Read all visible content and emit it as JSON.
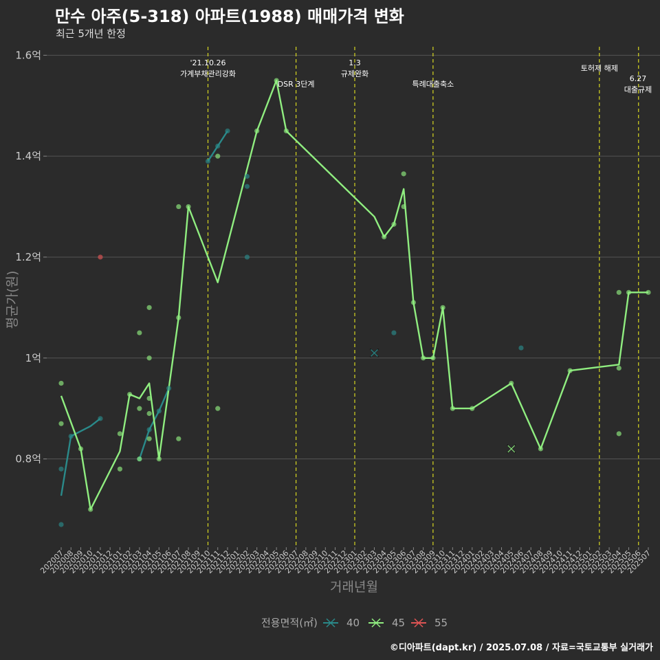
{
  "header": {
    "title": "만수 아주(5-318) 아파트(1988) 매매가격 변화",
    "subtitle": "최근 5개년 한정"
  },
  "caption": "©디아파트(dapt.kr) / 2025.07.08 / 자료=국토교통부 실거래가",
  "colors": {
    "40": "#2a8a8a",
    "45": "#90ee80",
    "55": "#e05555",
    "vline": "#d8d820",
    "grid": "#555555"
  },
  "chart_data": {
    "type": "line",
    "xlabel": "거래년월",
    "ylabel": "평균가(원)",
    "ylim": [
      0.625,
      1.625
    ],
    "yticks": [
      {
        "v": 0.8,
        "label": "0.8억"
      },
      {
        "v": 1.0,
        "label": "1억"
      },
      {
        "v": 1.2,
        "label": "1.2억"
      },
      {
        "v": 1.4,
        "label": "1.4억"
      },
      {
        "v": 1.6,
        "label": "1.6억"
      }
    ],
    "categories": [
      "202007",
      "202008",
      "202009",
      "202010",
      "202011",
      "202012",
      "202101",
      "202102",
      "202103",
      "202104",
      "202105",
      "202106",
      "202107",
      "202108",
      "202109",
      "202110",
      "202111",
      "202112",
      "202201",
      "202202",
      "202203",
      "202204",
      "202205",
      "202206",
      "202207",
      "202208",
      "202209",
      "202210",
      "202211",
      "202212",
      "202301",
      "202302",
      "202303",
      "202304",
      "202305",
      "202306",
      "202307",
      "202308",
      "202309",
      "202310",
      "202311",
      "202312",
      "202401",
      "202402",
      "202403",
      "202404",
      "202405",
      "202406",
      "202407",
      "202408",
      "202409",
      "202410",
      "202411",
      "202412",
      "202501",
      "202502",
      "202503",
      "202504",
      "202505",
      "202506",
      "202507"
    ],
    "legend": {
      "title": "전용면적(㎡)",
      "items": [
        "40",
        "45",
        "55"
      ]
    },
    "series": [
      {
        "name": "40",
        "line": [
          [
            "202007",
            0.727
          ],
          [
            "202008",
            0.845
          ],
          [
            "202010",
            0.865
          ],
          [
            "202011",
            0.88
          ],
          null,
          [
            "202103",
            0.8
          ],
          [
            "202104",
            0.858
          ],
          [
            "202105",
            0.895
          ],
          [
            "202106",
            0.94
          ],
          null,
          [
            "202110",
            1.39
          ],
          [
            "202111",
            1.42
          ],
          [
            "202112",
            1.45
          ]
        ],
        "points": [
          [
            "202007",
            0.78
          ],
          [
            "202007",
            0.67
          ],
          [
            "202008",
            0.845
          ],
          [
            "202011",
            0.88
          ],
          [
            "202103",
            0.8
          ],
          [
            "202104",
            0.858
          ],
          [
            "202105",
            0.895
          ],
          [
            "202106",
            0.94
          ],
          [
            "202110",
            1.39
          ],
          [
            "202111",
            1.42
          ],
          [
            "202112",
            1.45
          ],
          [
            "202202",
            1.36
          ],
          [
            "202202",
            1.34
          ],
          [
            "202202",
            1.2
          ],
          [
            "202305",
            1.05
          ],
          [
            "202406",
            1.02
          ]
        ],
        "cross": [
          [
            "202303",
            1.01
          ]
        ]
      },
      {
        "name": "45",
        "line": [
          [
            "202007",
            0.925
          ],
          [
            "202009",
            0.82
          ],
          [
            "202010",
            0.7
          ],
          [
            "202101",
            0.815
          ],
          [
            "202102",
            0.928
          ],
          [
            "202103",
            0.92
          ],
          [
            "202104",
            0.95
          ],
          [
            "202105",
            0.8
          ],
          [
            "202107",
            1.08
          ],
          [
            "202108",
            1.3
          ],
          [
            "202110",
            1.2
          ],
          [
            "202111",
            1.15
          ],
          [
            "202203",
            1.45
          ],
          [
            "202205",
            1.55
          ],
          [
            "202206",
            1.45
          ],
          [
            "202303",
            1.28
          ],
          [
            "202304",
            1.24
          ],
          [
            "202305",
            1.265
          ],
          [
            "202306",
            1.335
          ],
          [
            "202307",
            1.11
          ],
          [
            "202308",
            1.0
          ],
          [
            "202309",
            1.0
          ],
          [
            "202310",
            1.1
          ],
          [
            "202311",
            0.9
          ],
          [
            "202401",
            0.9
          ],
          [
            "202405",
            0.95
          ],
          [
            "202408",
            0.82
          ],
          [
            "202411",
            0.975
          ],
          [
            "202504",
            0.987
          ],
          [
            "202505",
            1.13
          ],
          [
            "202507",
            1.13
          ]
        ],
        "points": [
          [
            "202007",
            0.95
          ],
          [
            "202007",
            0.87
          ],
          [
            "202009",
            0.82
          ],
          [
            "202010",
            0.7
          ],
          [
            "202101",
            0.85
          ],
          [
            "202101",
            0.78
          ],
          [
            "202102",
            0.928
          ],
          [
            "202103",
            1.05
          ],
          [
            "202103",
            0.9
          ],
          [
            "202103",
            0.8
          ],
          [
            "202104",
            1.1
          ],
          [
            "202104",
            1.0
          ],
          [
            "202104",
            0.92
          ],
          [
            "202104",
            0.89
          ],
          [
            "202104",
            0.84
          ],
          [
            "202105",
            0.8
          ],
          [
            "202107",
            1.08
          ],
          [
            "202107",
            1.3
          ],
          [
            "202107",
            0.84
          ],
          [
            "202108",
            1.3
          ],
          [
            "202111",
            1.4
          ],
          [
            "202111",
            0.9
          ],
          [
            "202203",
            1.45
          ],
          [
            "202205",
            1.55
          ],
          [
            "202206",
            1.45
          ],
          [
            "202304",
            1.24
          ],
          [
            "202305",
            1.265
          ],
          [
            "202306",
            1.365
          ],
          [
            "202306",
            1.3
          ],
          [
            "202307",
            1.11
          ],
          [
            "202308",
            1.0
          ],
          [
            "202309",
            1.0
          ],
          [
            "202310",
            1.1
          ],
          [
            "202311",
            0.9
          ],
          [
            "202401",
            0.9
          ],
          [
            "202405",
            0.95
          ],
          [
            "202408",
            0.82
          ],
          [
            "202411",
            0.975
          ],
          [
            "202504",
            1.13
          ],
          [
            "202504",
            0.98
          ],
          [
            "202504",
            0.85
          ],
          [
            "202505",
            1.13
          ],
          [
            "202507",
            1.13
          ]
        ],
        "cross": [
          [
            "202405",
            0.82
          ]
        ]
      },
      {
        "name": "55",
        "line": [],
        "points": [
          [
            "202011",
            1.2
          ]
        ],
        "cross": []
      }
    ],
    "annotations": [
      {
        "x": "202110",
        "lines": [
          "'21.10.26",
          "가계부채관리강화"
        ],
        "level": "high"
      },
      {
        "x": "202207",
        "lines": [
          "DSR 3단계"
        ],
        "level": "low"
      },
      {
        "x": "202301",
        "lines": [
          "1.3",
          "규제완화"
        ],
        "level": "high"
      },
      {
        "x": "202309",
        "lines": [
          "특례대출축소"
        ],
        "level": "low"
      },
      {
        "x": "202502",
        "lines": [
          "토허제 해제"
        ],
        "level": "mid"
      },
      {
        "x": "202506",
        "lines": [
          "6.27",
          "대출규제"
        ],
        "level": "right"
      }
    ]
  }
}
